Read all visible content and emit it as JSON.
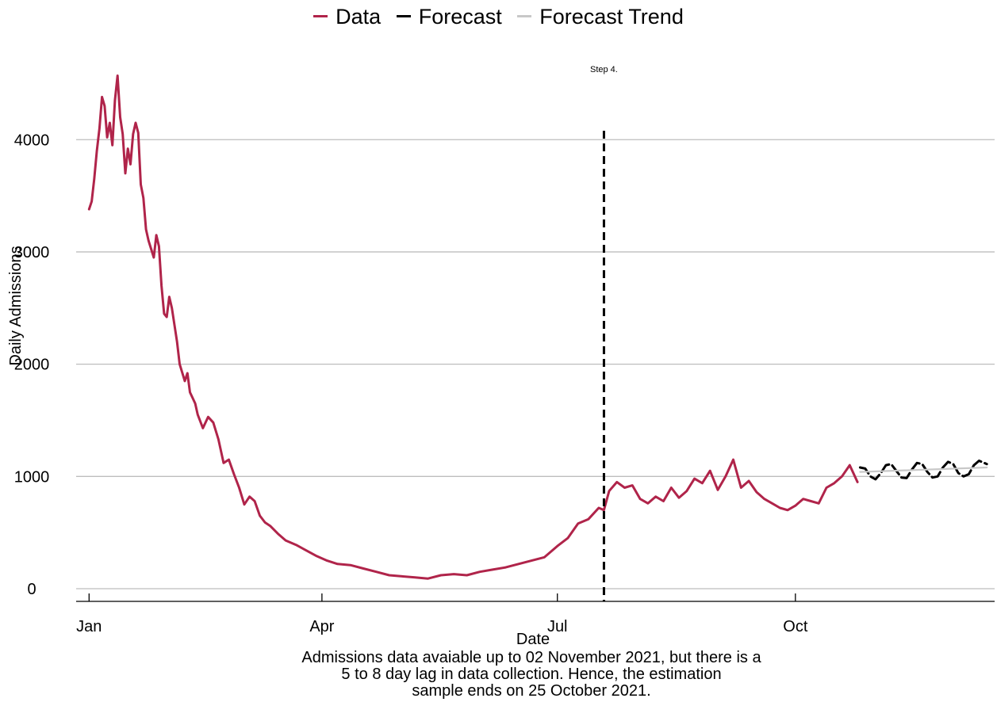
{
  "chart_data": {
    "type": "line",
    "title": "",
    "xlabel": "Date",
    "ylabel": "Daily Admissions",
    "xlim": [
      "2020-12-27",
      "2021-12-17"
    ],
    "ylim": [
      -120,
      4750
    ],
    "x_ticks": [
      {
        "date": "2021-01-01",
        "label": "Jan"
      },
      {
        "date": "2021-04-01",
        "label": "Apr"
      },
      {
        "date": "2021-07-01",
        "label": "Jul"
      },
      {
        "date": "2021-10-01",
        "label": "Oct"
      }
    ],
    "y_ticks": [
      0,
      1000,
      2000,
      3000,
      4000
    ],
    "grid": "horizontal",
    "legend_position": "top",
    "legend": [
      {
        "name": "Data",
        "color": "#B0244A"
      },
      {
        "name": "Forecast",
        "color": "#000000"
      },
      {
        "name": "Forecast Trend",
        "color": "#C8C8C8"
      }
    ],
    "annotations": [
      {
        "type": "vline",
        "date": "2021-07-19",
        "style": "dashed",
        "label": "Step 4."
      }
    ],
    "caption": [
      "Admissions data avaiable up to 02 November 2021, but there is a",
      "5 to 8 day lag in data collection. Hence, the estimation",
      "sample ends on 25 October 2021."
    ],
    "series": [
      {
        "name": "Data",
        "color": "#B0244A",
        "x": [
          "2021-01-01",
          "2021-01-02",
          "2021-01-03",
          "2021-01-04",
          "2021-01-05",
          "2021-01-06",
          "2021-01-07",
          "2021-01-08",
          "2021-01-09",
          "2021-01-10",
          "2021-01-11",
          "2021-01-12",
          "2021-01-13",
          "2021-01-14",
          "2021-01-15",
          "2021-01-16",
          "2021-01-17",
          "2021-01-18",
          "2021-01-19",
          "2021-01-20",
          "2021-01-21",
          "2021-01-22",
          "2021-01-23",
          "2021-01-24",
          "2021-01-26",
          "2021-01-27",
          "2021-01-28",
          "2021-01-29",
          "2021-01-30",
          "2021-01-31",
          "2021-02-01",
          "2021-02-02",
          "2021-02-04",
          "2021-02-05",
          "2021-02-07",
          "2021-02-08",
          "2021-02-09",
          "2021-02-10",
          "2021-02-11",
          "2021-02-12",
          "2021-02-14",
          "2021-02-16",
          "2021-02-18",
          "2021-02-20",
          "2021-02-22",
          "2021-02-24",
          "2021-02-26",
          "2021-02-28",
          "2021-03-02",
          "2021-03-04",
          "2021-03-06",
          "2021-03-08",
          "2021-03-10",
          "2021-03-12",
          "2021-03-15",
          "2021-03-18",
          "2021-03-22",
          "2021-03-26",
          "2021-03-30",
          "2021-04-03",
          "2021-04-07",
          "2021-04-12",
          "2021-04-17",
          "2021-04-22",
          "2021-04-27",
          "2021-05-02",
          "2021-05-07",
          "2021-05-12",
          "2021-05-17",
          "2021-05-22",
          "2021-05-27",
          "2021-06-01",
          "2021-06-06",
          "2021-06-11",
          "2021-06-16",
          "2021-06-21",
          "2021-06-26",
          "2021-07-01",
          "2021-07-05",
          "2021-07-09",
          "2021-07-13",
          "2021-07-17",
          "2021-07-19",
          "2021-07-21",
          "2021-07-24",
          "2021-07-27",
          "2021-07-30",
          "2021-08-02",
          "2021-08-05",
          "2021-08-08",
          "2021-08-11",
          "2021-08-14",
          "2021-08-17",
          "2021-08-20",
          "2021-08-23",
          "2021-08-26",
          "2021-08-29",
          "2021-09-01",
          "2021-09-04",
          "2021-09-07",
          "2021-09-10",
          "2021-09-13",
          "2021-09-16",
          "2021-09-19",
          "2021-09-22",
          "2021-09-25",
          "2021-09-28",
          "2021-10-01",
          "2021-10-04",
          "2021-10-07",
          "2021-10-10",
          "2021-10-13",
          "2021-10-16",
          "2021-10-19",
          "2021-10-22",
          "2021-10-25"
        ],
        "y": [
          3380,
          3450,
          3650,
          3900,
          4100,
          4380,
          4300,
          4020,
          4150,
          3950,
          4350,
          4570,
          4200,
          4050,
          3700,
          3920,
          3780,
          4050,
          4150,
          4060,
          3600,
          3480,
          3200,
          3100,
          2950,
          3150,
          3050,
          2700,
          2450,
          2420,
          2600,
          2500,
          2200,
          2000,
          1850,
          1920,
          1750,
          1700,
          1650,
          1550,
          1430,
          1530,
          1480,
          1330,
          1120,
          1150,
          1020,
          900,
          750,
          820,
          780,
          650,
          590,
          560,
          490,
          430,
          390,
          340,
          290,
          250,
          220,
          210,
          180,
          150,
          120,
          110,
          100,
          90,
          120,
          130,
          120,
          150,
          170,
          190,
          220,
          250,
          280,
          380,
          450,
          580,
          620,
          720,
          700,
          870,
          950,
          900,
          920,
          800,
          760,
          820,
          780,
          900,
          810,
          870,
          980,
          940,
          1050,
          880,
          1000,
          1150,
          900,
          960,
          860,
          800,
          760,
          720,
          700,
          740,
          800,
          780,
          760,
          900,
          940,
          1000,
          1100,
          950
        ]
      },
      {
        "name": "Forecast",
        "color": "#000000",
        "x": [
          "2021-10-26",
          "2021-10-28",
          "2021-10-30",
          "2021-11-01",
          "2021-11-03",
          "2021-11-05",
          "2021-11-07",
          "2021-11-09",
          "2021-11-11",
          "2021-11-13",
          "2021-11-15",
          "2021-11-17",
          "2021-11-19",
          "2021-11-21",
          "2021-11-23",
          "2021-11-25",
          "2021-11-27",
          "2021-11-29",
          "2021-12-01",
          "2021-12-03",
          "2021-12-05",
          "2021-12-07",
          "2021-12-09",
          "2021-12-11",
          "2021-12-13",
          "2021-12-14"
        ],
        "y": [
          1080,
          1070,
          1000,
          975,
          1030,
          1100,
          1110,
          1050,
          990,
          985,
          1060,
          1120,
          1110,
          1040,
          990,
          1000,
          1080,
          1130,
          1110,
          1030,
          1000,
          1020,
          1100,
          1140,
          1120,
          1110
        ]
      },
      {
        "name": "Forecast Trend",
        "color": "#C8C8C8",
        "x": [
          "2021-10-26",
          "2021-12-14"
        ],
        "y": [
          1040,
          1080
        ]
      }
    ]
  }
}
